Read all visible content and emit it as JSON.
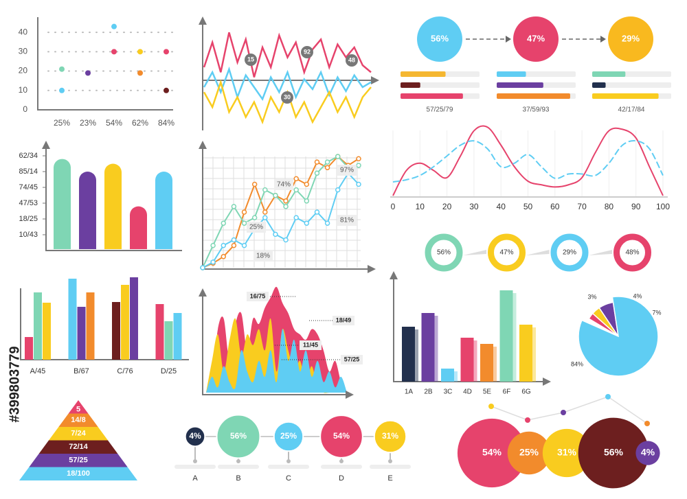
{
  "watermark": "#399803779",
  "chart_data": [
    {
      "type": "scatter",
      "categories": [
        "25%",
        "23%",
        "54%",
        "62%",
        "84%"
      ],
      "ylim": [
        0,
        45
      ],
      "yticks": [
        0,
        10,
        20,
        30,
        40
      ],
      "grid": true,
      "series": [
        {
          "color": "#5fcdf3",
          "values": [
            10,
            null,
            43,
            null,
            null
          ]
        },
        {
          "color": "#7fd6b4",
          "values": [
            21,
            null,
            null,
            null,
            null
          ]
        },
        {
          "color": "#6b3fa0",
          "values": [
            null,
            19,
            null,
            null,
            null
          ]
        },
        {
          "color": "#e6436c",
          "values": [
            null,
            null,
            30,
            null,
            30
          ]
        },
        {
          "color": "#f9cc1f",
          "values": [
            null,
            null,
            null,
            30,
            null
          ]
        },
        {
          "color": "#f28b2c",
          "values": [
            null,
            null,
            null,
            19,
            null
          ]
        },
        {
          "color": "#6d1f1f",
          "values": [
            null,
            null,
            null,
            null,
            10
          ]
        }
      ]
    },
    {
      "type": "line",
      "ylim": [
        0,
        100
      ],
      "annotations": [
        "15",
        "92",
        "48",
        "30"
      ],
      "series": [
        {
          "color": "#e6436c",
          "values": [
            60,
            85,
            55,
            95,
            65,
            88,
            50,
            80,
            60,
            92,
            70,
            85,
            55,
            78,
            88,
            60,
            83,
            70,
            80,
            62,
            55
          ]
        },
        {
          "color": "#5fcdf3",
          "values": [
            40,
            55,
            35,
            58,
            30,
            52,
            40,
            28,
            50,
            35,
            55,
            30,
            48,
            38,
            55,
            32,
            50,
            36,
            52,
            40,
            45
          ]
        },
        {
          "color": "#f9cc1f",
          "values": [
            35,
            20,
            45,
            15,
            30,
            10,
            25,
            5,
            30,
            15,
            35,
            10,
            25,
            5,
            20,
            35,
            15,
            30,
            10,
            30,
            40
          ]
        }
      ]
    },
    {
      "type": "progress",
      "values": [
        56,
        47,
        29
      ],
      "value_labels": [
        "56%",
        "47%",
        "29%"
      ],
      "colors": [
        "#5fcdf3",
        "#e6436c",
        "#f9b91f"
      ],
      "bars": [
        [
          57,
          25,
          79
        ],
        [
          37,
          59,
          93
        ],
        [
          42,
          17,
          84
        ]
      ],
      "bar_colors": [
        [
          "#f5b731",
          "#6d1f1f",
          "#e6436c"
        ],
        [
          "#5fcdf3",
          "#6b3fa0",
          "#f28b2c"
        ],
        [
          "#7fd6b4",
          "#22304d",
          "#f9cc1f"
        ]
      ],
      "captions": [
        "57/25/79",
        "37/59/93",
        "42/17/84"
      ]
    },
    {
      "type": "bar",
      "ylim": [
        0,
        6
      ],
      "yticks": [
        {
          "value": 1,
          "label": "10/43"
        },
        {
          "value": 2,
          "label": "18/25"
        },
        {
          "value": 3,
          "label": "47/53"
        },
        {
          "value": 4,
          "label": "74/45"
        },
        {
          "value": 5,
          "label": "85/14"
        },
        {
          "value": 6,
          "label": "62/34"
        }
      ],
      "values": [
        5.8,
        5.0,
        5.5,
        2.8,
        5.0
      ],
      "colors": [
        "#7fd6b4",
        "#6b3fa0",
        "#f9cc1f",
        "#e6436c",
        "#5fcdf3"
      ]
    },
    {
      "type": "line",
      "ylim": [
        0,
        100
      ],
      "grid": true,
      "annotations": [
        "74%",
        "25%",
        "18%",
        "97%",
        "81%"
      ],
      "series": [
        {
          "color": "#f28b2c",
          "values": [
            0,
            4,
            10,
            20,
            50,
            75,
            50,
            65,
            60,
            80,
            75,
            95,
            90,
            100,
            92,
            98
          ]
        },
        {
          "color": "#7fd6b4",
          "values": [
            0,
            20,
            40,
            55,
            40,
            45,
            70,
            65,
            55,
            70,
            60,
            85,
            95,
            100,
            90,
            92
          ]
        },
        {
          "color": "#5fcdf3",
          "values": [
            0,
            5,
            20,
            25,
            20,
            35,
            45,
            30,
            25,
            45,
            40,
            50,
            40,
            70,
            85,
            75
          ]
        }
      ]
    },
    {
      "type": "curve",
      "xlim": [
        0,
        100
      ],
      "xticks": [
        0,
        10,
        20,
        30,
        40,
        50,
        60,
        70,
        80,
        90,
        100
      ],
      "ylim": [
        0,
        100
      ],
      "x": [
        0,
        5,
        10,
        15,
        20,
        25,
        30,
        35,
        40,
        45,
        50,
        55,
        60,
        65,
        70,
        75,
        80,
        85,
        90,
        95,
        100
      ],
      "series": [
        {
          "color": "#e6436c",
          "dashed": false,
          "values": [
            0,
            35,
            45,
            35,
            25,
            55,
            90,
            95,
            70,
            40,
            20,
            15,
            12,
            15,
            25,
            60,
            90,
            92,
            80,
            40,
            0
          ]
        },
        {
          "color": "#5fcdf3",
          "dashed": true,
          "values": [
            19,
            22,
            28,
            40,
            55,
            70,
            76,
            65,
            40,
            45,
            57,
            40,
            24,
            30,
            30,
            28,
            45,
            70,
            76,
            65,
            28
          ]
        }
      ]
    },
    {
      "type": "ring",
      "values": [
        56,
        47,
        29,
        48
      ],
      "value_labels": [
        "56%",
        "47%",
        "29%",
        "48%"
      ],
      "colors": [
        "#7fd6b4",
        "#f9cc1f",
        "#5fcdf3",
        "#e6436c"
      ]
    },
    {
      "type": "grouped-bar",
      "categories": [
        "A/45",
        "B/67",
        "C/76",
        "D/25"
      ],
      "ylim": [
        0,
        130
      ],
      "values": [
        [
          33,
          98,
          83
        ],
        [
          118,
          77,
          98
        ],
        [
          84,
          109,
          120
        ],
        [
          81,
          56,
          68
        ]
      ],
      "colors": [
        [
          "#e6436c",
          "#7fd6b4",
          "#f9cc1f"
        ],
        [
          "#5fcdf3",
          "#6b3fa0",
          "#f28b2c"
        ],
        [
          "#6d1f1f",
          "#f9cc1f",
          "#6b3fa0"
        ],
        [
          "#e6436c",
          "#7fd6b4",
          "#5fcdf3"
        ]
      ]
    },
    {
      "type": "area",
      "ylim": [
        0,
        100
      ],
      "annotations": [
        "16/75",
        "18/49",
        "11/45",
        "57/25"
      ],
      "series": [
        {
          "color": "#e6436c",
          "values": [
            0,
            10,
            60,
            70,
            30,
            65,
            75,
            40,
            70,
            65,
            80,
            90,
            100,
            85,
            75,
            60,
            55,
            50,
            60,
            55,
            40,
            20,
            30,
            10,
            0
          ]
        },
        {
          "color": "#f9cc1f",
          "values": [
            0,
            30,
            55,
            20,
            50,
            70,
            35,
            55,
            45,
            60,
            40,
            70,
            20,
            60,
            40,
            20,
            30,
            10,
            25,
            5,
            0,
            0,
            0,
            0,
            0
          ]
        },
        {
          "color": "#5fcdf3",
          "values": [
            0,
            15,
            5,
            25,
            10,
            5,
            40,
            20,
            10,
            30,
            15,
            40,
            10,
            60,
            30,
            50,
            20,
            40,
            15,
            30,
            10,
            20,
            5,
            15,
            0
          ]
        }
      ]
    },
    {
      "type": "bar",
      "categories": [
        "1A",
        "2B",
        "3C",
        "4D",
        "5E",
        "6F",
        "6G"
      ],
      "ylim": [
        0,
        140
      ],
      "values": [
        80,
        100,
        19,
        64,
        55,
        133,
        83
      ],
      "colors": [
        "#22304d",
        "#6b3fa0",
        "#5fcdf3",
        "#e6436c",
        "#f28b2c",
        "#7fd6b4",
        "#f9cc1f"
      ]
    },
    {
      "type": "pie",
      "values": [
        3,
        4,
        7,
        84
      ],
      "value_labels": [
        "3%",
        "4%",
        "7%",
        "84%"
      ],
      "colors": [
        "#e6436c",
        "#f9cc1f",
        "#6b3fa0",
        "#5fcdf3"
      ]
    },
    {
      "type": "pyramid",
      "labels": [
        "5",
        "14/8",
        "7/24",
        "72/14",
        "57/25",
        "18/100"
      ],
      "colors": [
        "#e6436c",
        "#f28b2c",
        "#f9cc1f",
        "#6d1f1f",
        "#6b3fa0",
        "#5fcdf3"
      ]
    },
    {
      "type": "timeline",
      "categories": [
        "A",
        "B",
        "C",
        "D",
        "E"
      ],
      "values": [
        4,
        56,
        25,
        54,
        31
      ],
      "value_labels": [
        "4%",
        "56%",
        "25%",
        "54%",
        "31%"
      ],
      "colors": [
        "#22304d",
        "#7fd6b4",
        "#5fcdf3",
        "#e6436c",
        "#f9cc1f"
      ]
    },
    {
      "type": "bubble",
      "values": [
        54,
        25,
        31,
        56,
        4
      ],
      "value_labels": [
        "54%",
        "25%",
        "31%",
        "56%",
        "4%"
      ],
      "colors": [
        "#e6436c",
        "#f28b2c",
        "#f9cc1f",
        "#6d1f1f",
        "#6b3fa0"
      ]
    }
  ]
}
